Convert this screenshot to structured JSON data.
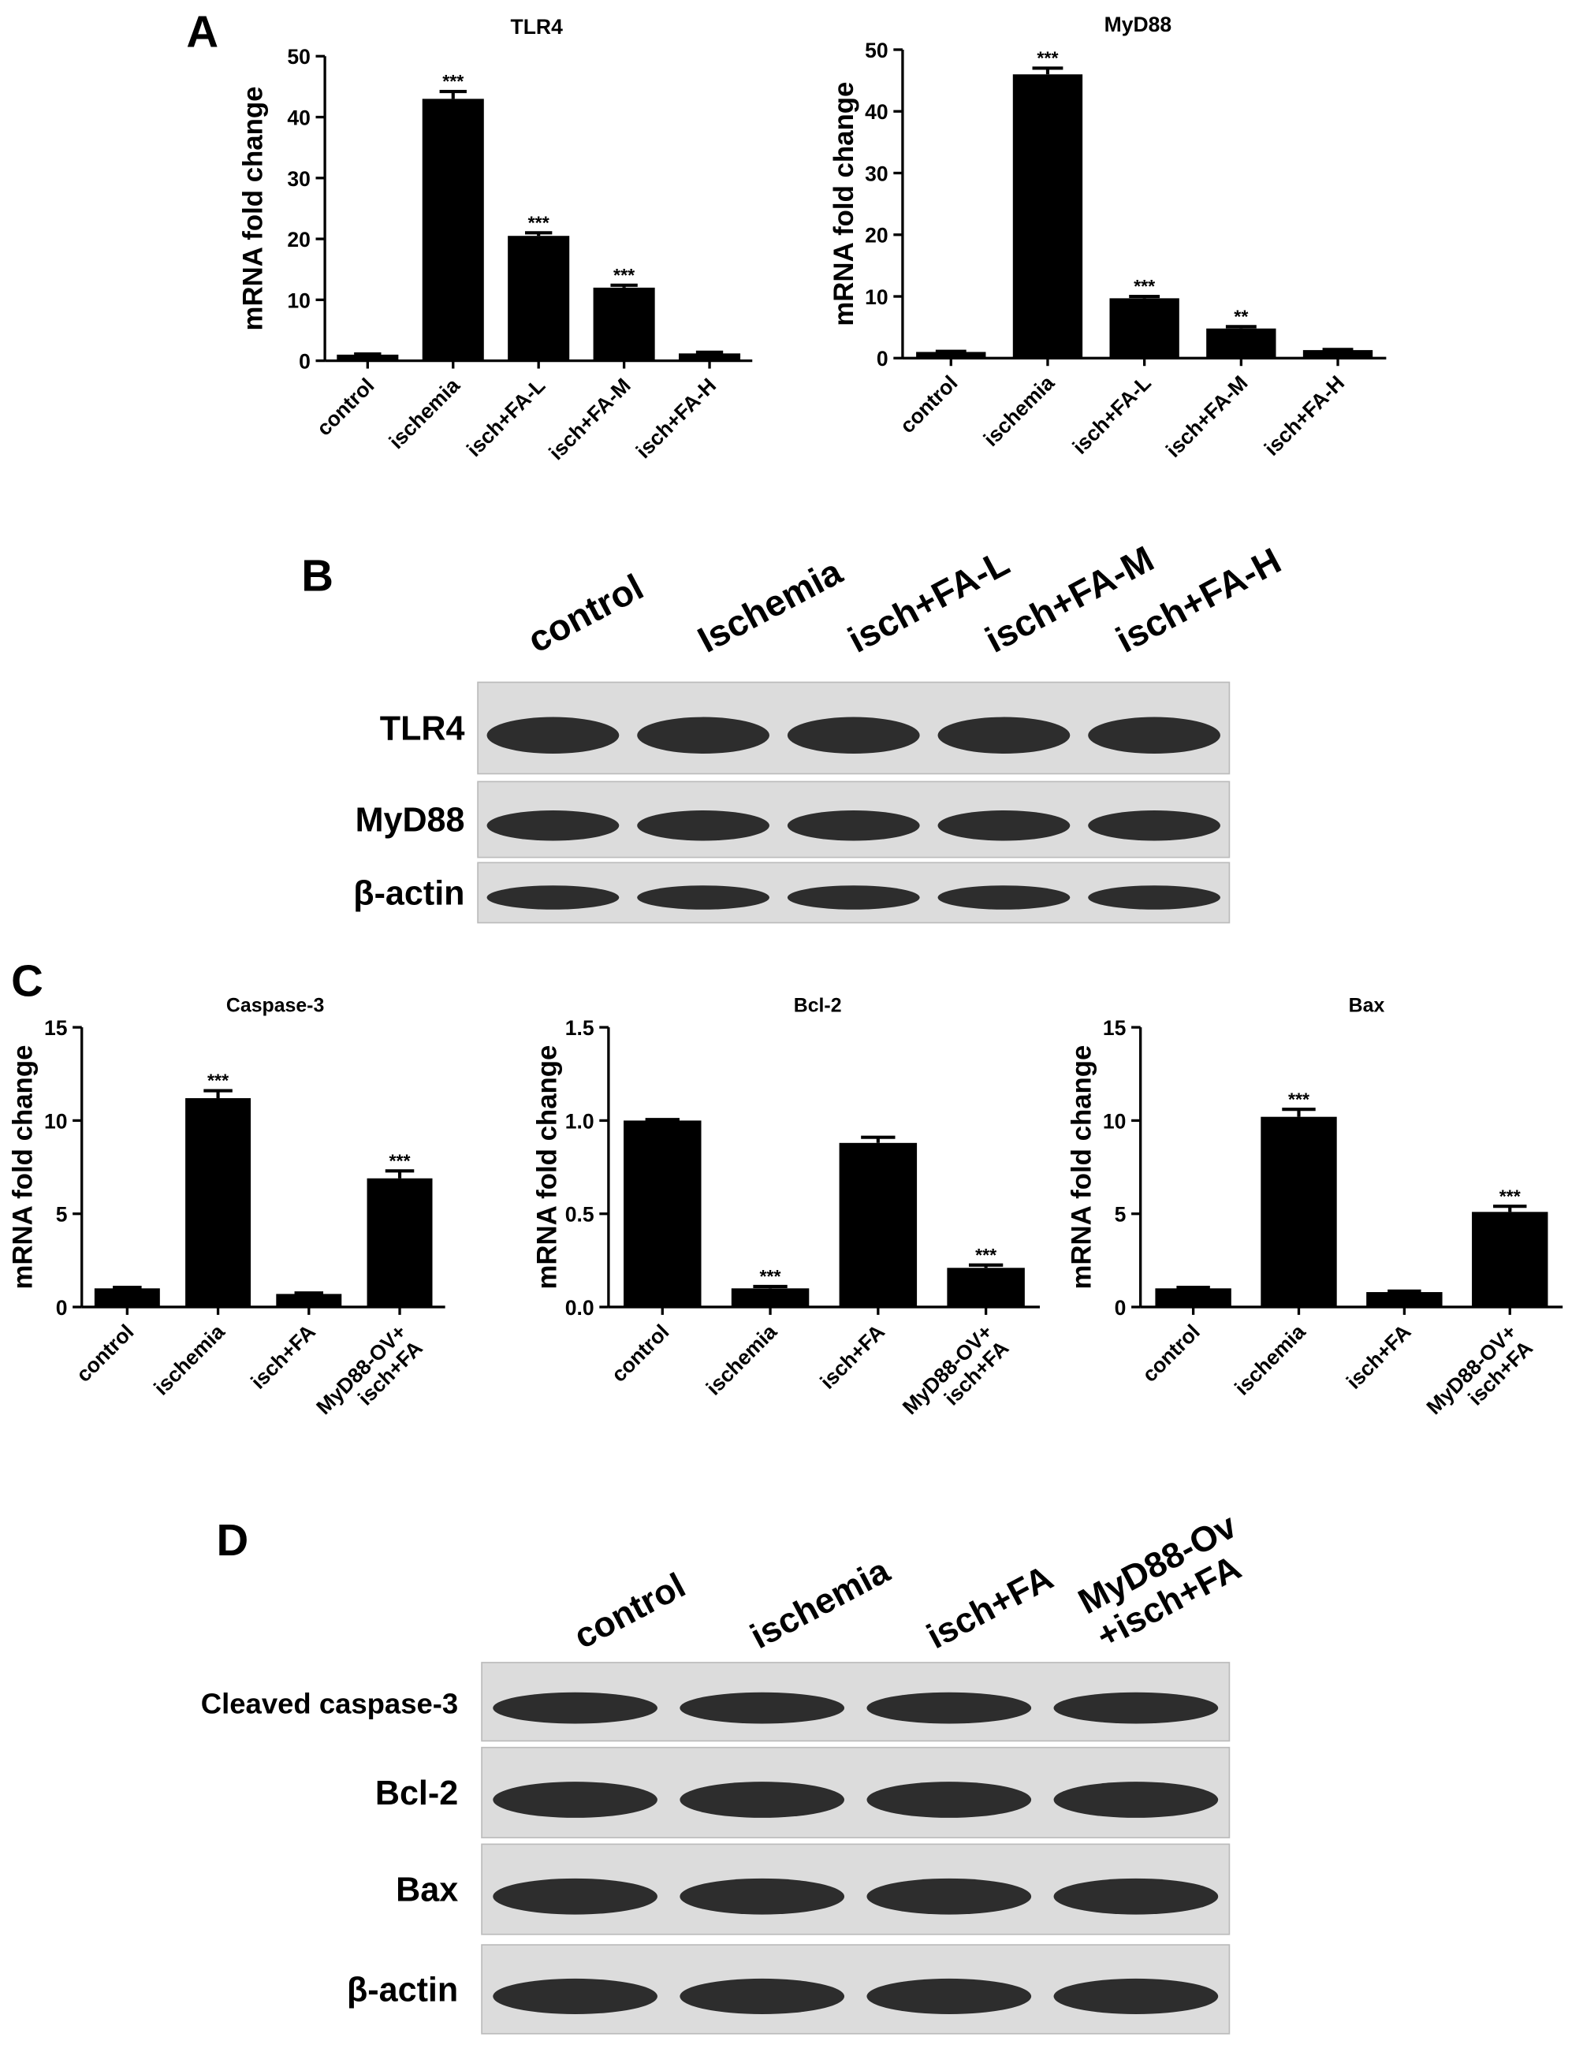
{
  "panels": [
    "A",
    "B",
    "C",
    "D"
  ],
  "chart_data": [
    {
      "type": "bar",
      "title": "TLR4",
      "ylabel": "mRNA fold change",
      "categories": [
        "control",
        "ischemia",
        "isch+FA-L",
        "isch+FA-M",
        "isch+FA-H"
      ],
      "values": [
        1,
        43,
        20.5,
        12,
        1.2
      ],
      "errors": [
        0.1,
        1.2,
        0.5,
        0.4,
        0.2
      ],
      "significance": [
        null,
        "***",
        "***",
        "***",
        null
      ],
      "color": "#000000",
      "ylim": [
        0,
        50
      ],
      "yticks": [
        0,
        10,
        20,
        30,
        40,
        50
      ]
    },
    {
      "type": "bar",
      "title": "MyD88",
      "ylabel": "mRNA fold change",
      "categories": [
        "control",
        "ischemia",
        "isch+FA-L",
        "isch+FA-M",
        "isch+FA-H"
      ],
      "values": [
        1,
        46,
        9.7,
        4.8,
        1.3
      ],
      "errors": [
        0.1,
        1,
        0.3,
        0.3,
        0.1
      ],
      "significance": [
        null,
        "***",
        "***",
        "**",
        null
      ],
      "color": "#000000",
      "ylim": [
        0,
        50
      ],
      "yticks": [
        0,
        10,
        20,
        30,
        40,
        50
      ]
    },
    {
      "type": "bar",
      "title": "Caspase-3",
      "ylabel": "mRNA fold change",
      "categories": [
        "control",
        "ischemia",
        "isch+FA",
        "MyD88-OV+\nisch+FA"
      ],
      "values": [
        1,
        11.2,
        0.7,
        6.9
      ],
      "errors": [
        0.05,
        0.4,
        0.05,
        0.4
      ],
      "significance": [
        null,
        "***",
        null,
        "***"
      ],
      "color": "#000000",
      "ylim": [
        0,
        15
      ],
      "yticks": [
        0,
        5,
        10,
        15
      ]
    },
    {
      "type": "bar",
      "title": "Bcl-2",
      "ylabel": "mRNA fold change",
      "categories": [
        "control",
        "ischemia",
        "isch+FA",
        "MyD88-OV+\nisch+FA"
      ],
      "values": [
        1.0,
        0.1,
        0.88,
        0.21
      ],
      "errors": [
        0.005,
        0.01,
        0.03,
        0.015
      ],
      "significance": [
        null,
        "***",
        null,
        "***"
      ],
      "color": "#000000",
      "ylim": [
        0,
        1.5
      ],
      "yticks": [
        {
          "value": 0,
          "label": "0.0"
        },
        0.5,
        {
          "value": 1,
          "label": "1.0"
        },
        1.5
      ]
    },
    {
      "type": "bar",
      "title": "Bax",
      "ylabel": "mRNA fold change",
      "categories": [
        "control",
        "ischemia",
        "isch+FA",
        "MyD88-OV+\nisch+FA"
      ],
      "values": [
        1,
        10.2,
        0.8,
        5.1
      ],
      "errors": [
        0.05,
        0.4,
        0.05,
        0.3
      ],
      "significance": [
        null,
        "***",
        null,
        "***"
      ],
      "color": "#000000",
      "ylim": [
        0,
        15
      ],
      "yticks": [
        0,
        5,
        10,
        15
      ]
    }
  ],
  "blots": [
    {
      "lanes": [
        "control",
        "Ischemia",
        "isch+FA-L",
        "isch+FA-M",
        "isch+FA-H"
      ],
      "rows": [
        "TLR4",
        "MyD88",
        "β-actin"
      ]
    },
    {
      "lanes": [
        "control",
        "ischemia",
        "isch+FA",
        "MyD88-Ov\n+isch+FA"
      ],
      "rows": [
        "Cleaved caspase-3",
        "Bcl-2",
        "Bax",
        "β-actin"
      ]
    }
  ]
}
